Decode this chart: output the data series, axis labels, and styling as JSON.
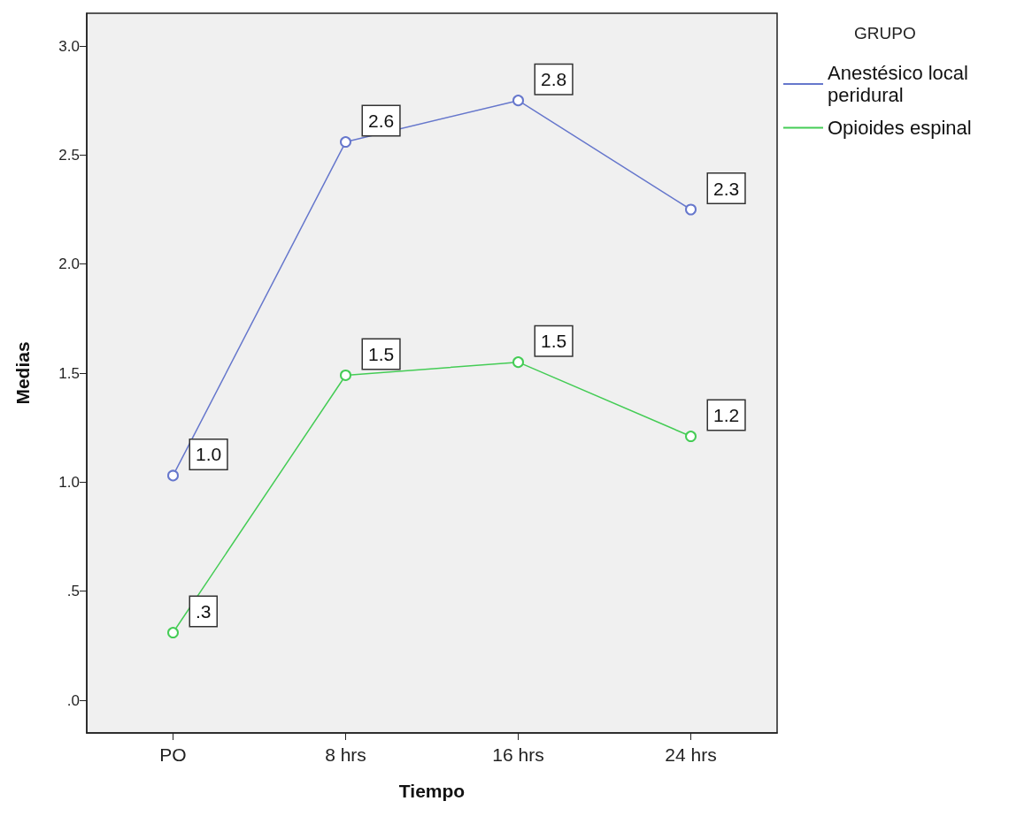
{
  "chart_data": {
    "type": "line",
    "xlabel": "Tiempo",
    "ylabel": "Medias",
    "legend_title": "GRUPO",
    "categories": [
      "PO",
      "8 hrs",
      "16 hrs",
      "24 hrs"
    ],
    "series": [
      {
        "name": "Anestésico local peridural",
        "color": "#6677cc",
        "values": [
          1.03,
          2.56,
          2.75,
          2.25
        ],
        "value_labels": [
          "1.0",
          "2.6",
          "2.8",
          "2.3"
        ]
      },
      {
        "name": "Opioides espinal",
        "color": "#44cc55",
        "values": [
          0.31,
          1.49,
          1.55,
          1.21
        ],
        "value_labels": [
          ".3",
          "1.5",
          "1.5",
          "1.2"
        ]
      }
    ],
    "ylim": [
      -0.15,
      3.15
    ],
    "yticks": [
      {
        "value": 0,
        "label": ".0"
      },
      {
        "value": 0.5,
        "label": ".5"
      },
      {
        "value": 1,
        "label": "1.0"
      },
      {
        "value": 1.5,
        "label": "1.5"
      },
      {
        "value": 2,
        "label": "2.0"
      },
      {
        "value": 2.5,
        "label": "2.5"
      },
      {
        "value": 3,
        "label": "3.0"
      }
    ],
    "grid": false,
    "legend": "top right",
    "marker": "circle",
    "line_style": "solid"
  }
}
